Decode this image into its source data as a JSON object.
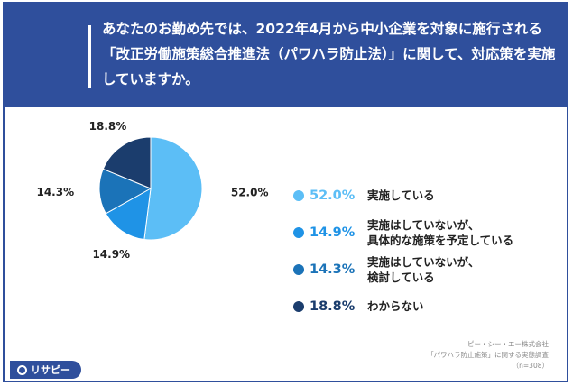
{
  "header": {
    "question": "あなたのお勤め先では、2022年4月から中小企業を対象に施行される「改正労働施策総合推進法（パワハラ防止法）」に関して、対応策を実施していますか。"
  },
  "chart_data": {
    "type": "pie",
    "unit": "%",
    "start_angle_deg": 0,
    "direction": "clockwise",
    "slices": [
      {
        "label": "実施している",
        "value": 52.0,
        "display": "52.0%",
        "color": "#5cbef6"
      },
      {
        "label": "実施はしていないが、具体的な施策を予定している",
        "value": 14.9,
        "display": "14.9%",
        "color": "#1f93e6"
      },
      {
        "label": "実施はしていないが、検討している",
        "value": 14.3,
        "display": "14.3%",
        "color": "#1b73b8"
      },
      {
        "label": "わからない",
        "value": 18.8,
        "display": "18.8%",
        "color": "#1b3d6d"
      }
    ]
  },
  "legend": [
    {
      "pct": "52.0%",
      "label": "実施している",
      "color": "#5cbef6"
    },
    {
      "pct": "14.9%",
      "label": "実施はしていないが、\n具体的な施策を予定している",
      "color": "#1f93e6"
    },
    {
      "pct": "14.3%",
      "label": "実施はしていないが、\n検討している",
      "color": "#1b73b8"
    },
    {
      "pct": "18.8%",
      "label": "わからない",
      "color": "#1b3d6d"
    }
  ],
  "footer": {
    "logo_text": "リサピー",
    "source_lines": [
      "ピー・シー・エー株式会社",
      "「パワハラ防止施策」に関する実態調査",
      "（n=308）"
    ]
  },
  "colors": {
    "header_bg": "#2f4f9c",
    "accent": "#2f4f9c"
  }
}
